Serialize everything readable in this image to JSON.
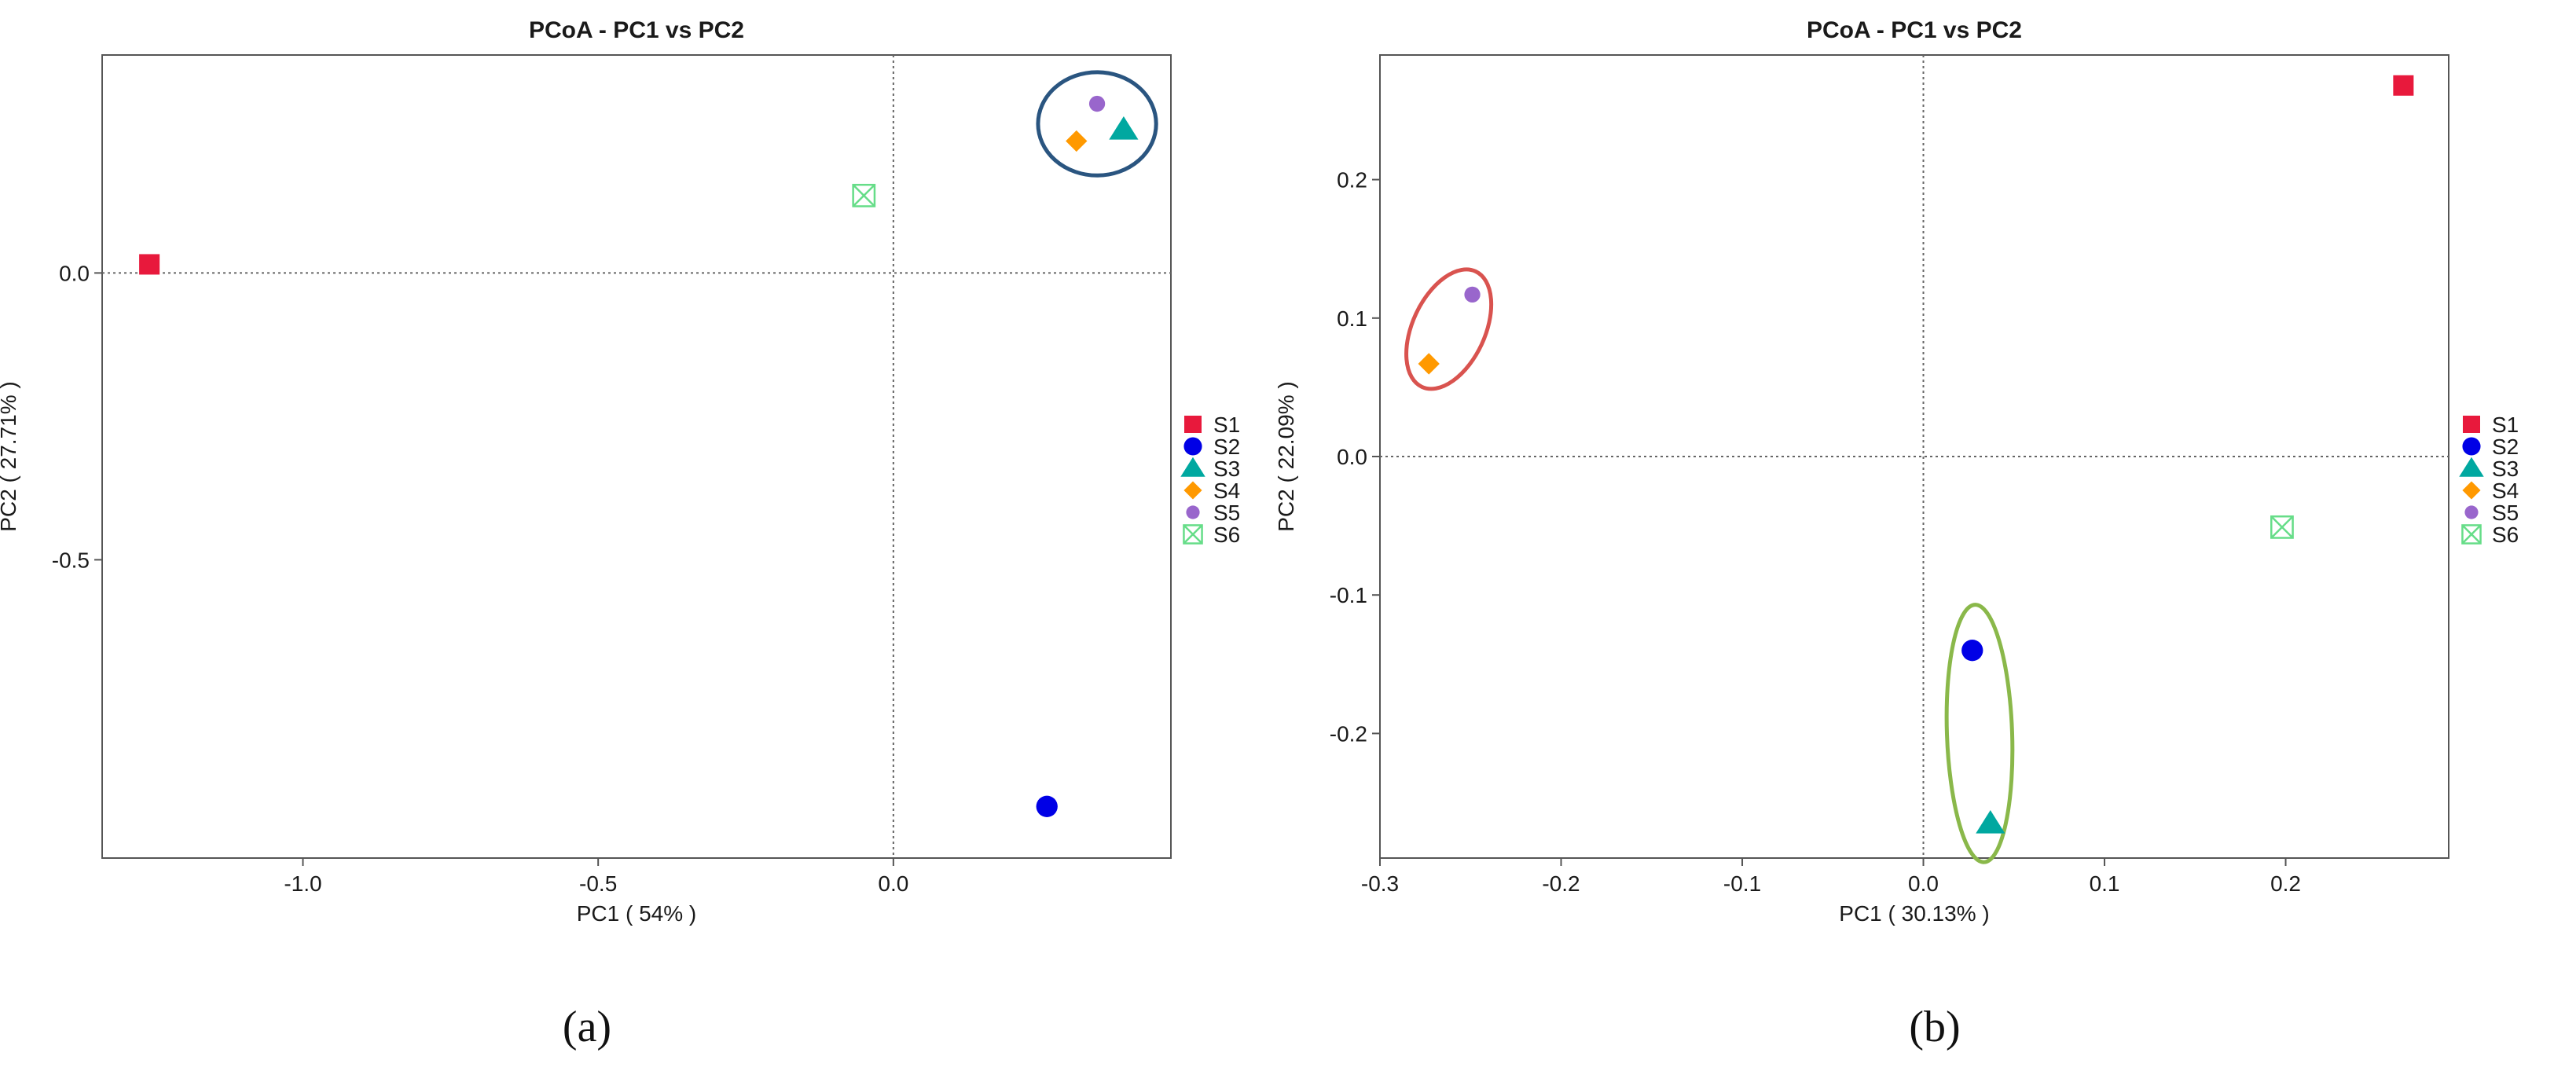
{
  "chart_data": [
    {
      "type": "scatter",
      "title": "PCoA - PC1 vs PC2",
      "xlabel": "PC1 ( 54% )",
      "ylabel": "PC2 ( 27.71% )",
      "xlim": [
        -1.34,
        0.47
      ],
      "ylim": [
        -1.02,
        0.38
      ],
      "xticks": [
        -1.0,
        -0.5,
        0.0
      ],
      "xtick_labels": [
        "-1.0",
        "-0.5",
        "0.0"
      ],
      "yticks": [
        0.0,
        -0.5
      ],
      "ytick_labels": [
        "0.0",
        "-0.5"
      ],
      "grid": false,
      "reference_lines": {
        "x": 0,
        "y": 0
      },
      "legend": "right",
      "series": [
        {
          "name": "S1",
          "marker": "square",
          "color": "#e8193c",
          "x": [
            -1.26
          ],
          "y": [
            0.015
          ]
        },
        {
          "name": "S2",
          "marker": "circle",
          "color": "#0000e6",
          "x": [
            0.26
          ],
          "y": [
            -0.93
          ]
        },
        {
          "name": "S3",
          "marker": "triangle",
          "color": "#00a8a0",
          "x": [
            0.39
          ],
          "y": [
            0.25
          ]
        },
        {
          "name": "S4",
          "marker": "diamond",
          "color": "#ff9900",
          "x": [
            0.31
          ],
          "y": [
            0.23
          ]
        },
        {
          "name": "S5",
          "marker": "circle-small",
          "color": "#9966cc",
          "x": [
            0.345
          ],
          "y": [
            0.295
          ]
        },
        {
          "name": "S6",
          "marker": "boxed-x",
          "color": "#66dd88",
          "x": [
            -0.05
          ],
          "y": [
            0.135
          ]
        }
      ],
      "highlight_ellipses": [
        {
          "color": "#2a5580",
          "cx": 0.345,
          "cy": 0.26,
          "rx": 0.1,
          "ry": 0.09,
          "angle": 0
        }
      ],
      "panel_label": "(a)"
    },
    {
      "type": "scatter",
      "title": "PCoA - PC1 vs PC2",
      "xlabel": "PC1 ( 30.13% )",
      "ylabel": "PC2 ( 22.09% )",
      "xlim": [
        -0.3,
        0.29
      ],
      "ylim": [
        -0.29,
        0.29
      ],
      "xticks": [
        -0.3,
        -0.2,
        -0.1,
        0.0,
        0.1,
        0.2
      ],
      "xtick_labels": [
        "-0.3",
        "-0.2",
        "-0.1",
        "0.0",
        "0.1",
        "0.2"
      ],
      "yticks": [
        0.2,
        0.1,
        0.0,
        -0.1,
        -0.2
      ],
      "ytick_labels": [
        "0.2",
        "0.1",
        "0.0",
        "-0.1",
        "-0.2"
      ],
      "grid": false,
      "reference_lines": {
        "x": 0,
        "y": 0
      },
      "legend": "right",
      "series": [
        {
          "name": "S1",
          "marker": "square",
          "color": "#e8193c",
          "x": [
            0.265
          ],
          "y": [
            0.268
          ]
        },
        {
          "name": "S2",
          "marker": "circle",
          "color": "#0000e6",
          "x": [
            0.027
          ],
          "y": [
            -0.14
          ]
        },
        {
          "name": "S3",
          "marker": "triangle",
          "color": "#00a8a0",
          "x": [
            0.037
          ],
          "y": [
            -0.265
          ]
        },
        {
          "name": "S4",
          "marker": "diamond",
          "color": "#ff9900",
          "x": [
            -0.273
          ],
          "y": [
            0.067
          ]
        },
        {
          "name": "S5",
          "marker": "circle-small",
          "color": "#9966cc",
          "x": [
            -0.249
          ],
          "y": [
            0.117
          ]
        },
        {
          "name": "S6",
          "marker": "boxed-x",
          "color": "#66dd88",
          "x": [
            0.198
          ],
          "y": [
            -0.051
          ]
        }
      ],
      "highlight_ellipses": [
        {
          "color": "#d9534f",
          "cx": -0.262,
          "cy": 0.092,
          "rx": 0.02,
          "ry": 0.046,
          "angle": 25
        },
        {
          "color": "#8ab84a",
          "cx": 0.031,
          "cy": -0.2,
          "rx": 0.018,
          "ry": 0.093,
          "angle": -2
        }
      ],
      "panel_label": "(b)"
    }
  ]
}
